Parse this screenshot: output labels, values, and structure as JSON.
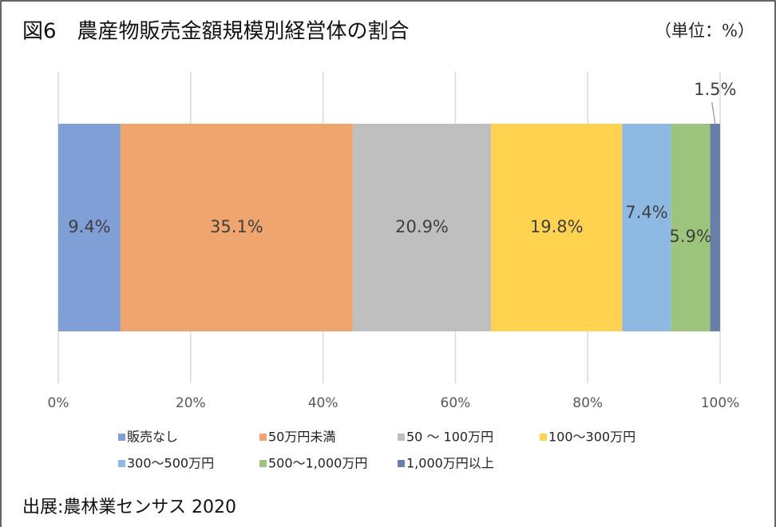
{
  "chart_data": {
    "type": "stacked_bar_horizontal",
    "title": "図6　農産物販売金額規模別経営体の割合",
    "unit": "（単位：%）",
    "source": "出展:農林業センサス 2020",
    "categories": [
      null
    ],
    "series": [
      {
        "name": "販売なし",
        "color": "#7f9fd6",
        "values": [
          9.4
        ],
        "value_labels": [
          "9.4%"
        ]
      },
      {
        "name": "50万円未満",
        "color": "#f0a46e",
        "values": [
          35.1
        ],
        "value_labels": [
          "35.1%"
        ]
      },
      {
        "name": "50 ～ 100万円",
        "color": "#bfbfbf",
        "values": [
          20.9
        ],
        "value_labels": [
          "20.9%"
        ]
      },
      {
        "name": "100～300万円",
        "color": "#ffd350",
        "values": [
          19.8
        ],
        "value_labels": [
          "19.8%"
        ]
      },
      {
        "name": "300～500万円",
        "color": "#8db9e3",
        "values": [
          7.4
        ],
        "value_labels": [
          "7.4%"
        ]
      },
      {
        "name": "500～1,000万円",
        "color": "#9cc47c",
        "values": [
          5.9
        ],
        "value_labels": [
          "5.9%"
        ]
      },
      {
        "name": "1,000万円以上",
        "color": "#6880a8",
        "values": [
          1.5
        ],
        "value_labels": [
          "1.5%"
        ]
      }
    ],
    "xlim": [
      0,
      100
    ],
    "xticks": [
      {
        "value": 0,
        "label": "0%"
      },
      {
        "value": 20,
        "label": "20%"
      },
      {
        "value": 40,
        "label": "40%"
      },
      {
        "value": 60,
        "label": "60%"
      },
      {
        "value": 80,
        "label": "80%"
      },
      {
        "value": 100,
        "label": "100%"
      }
    ],
    "grid": true,
    "legend": "bottom"
  }
}
